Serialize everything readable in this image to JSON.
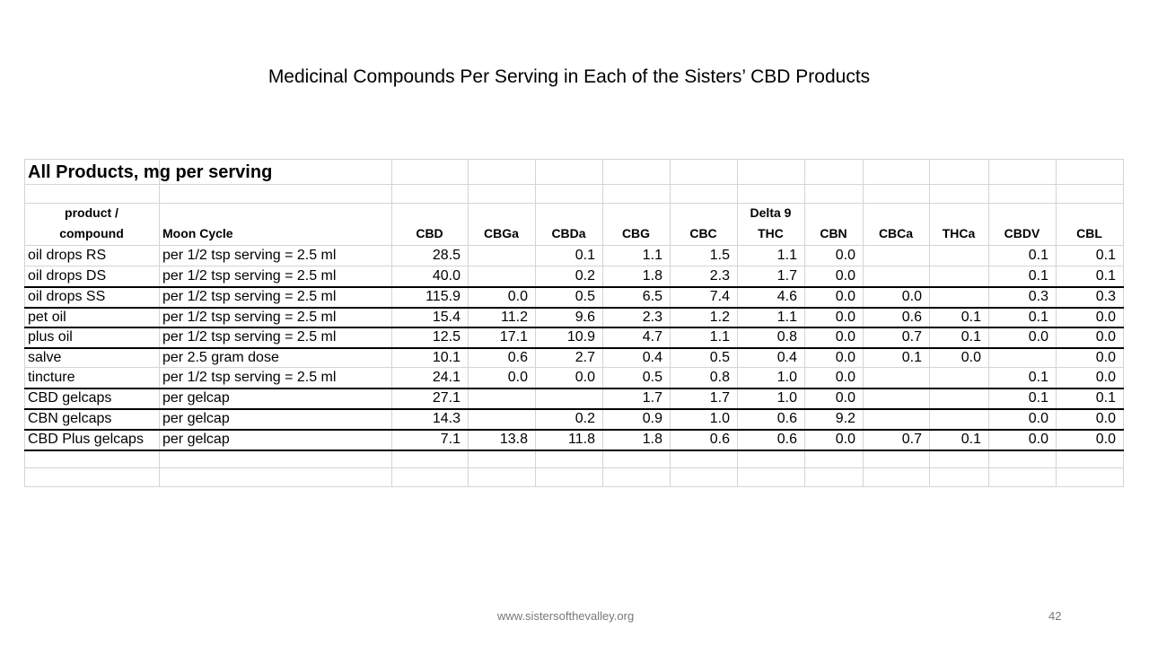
{
  "title": "Medicinal Compounds Per Serving in Each of the Sisters’ CBD Products",
  "table": {
    "caption": "All Products, mg per serving",
    "headers": [
      [
        "product /",
        "compound"
      ],
      [
        "Moon Cycle"
      ],
      [
        "CBD"
      ],
      [
        "CBGa"
      ],
      [
        "CBDa"
      ],
      [
        "CBG"
      ],
      [
        "CBC"
      ],
      [
        "Delta 9",
        "THC"
      ],
      [
        "CBN"
      ],
      [
        "CBCa"
      ],
      [
        "THCa"
      ],
      [
        "CBDV"
      ],
      [
        "CBL"
      ]
    ],
    "rows": [
      [
        "oil drops RS",
        "per 1/2 tsp serving = 2.5 ml",
        "28.5",
        null,
        "0.1",
        "1.1",
        "1.5",
        "1.1",
        "0.0",
        null,
        null,
        "0.1",
        "0.1"
      ],
      [
        "oil drops DS",
        "per 1/2 tsp serving = 2.5 ml",
        "40.0",
        null,
        "0.2",
        "1.8",
        "2.3",
        "1.7",
        "0.0",
        null,
        null,
        "0.1",
        "0.1"
      ],
      [
        "oil drops SS",
        "per 1/2 tsp serving = 2.5 ml",
        "115.9",
        "0.0",
        "0.5",
        "6.5",
        "7.4",
        "4.6",
        "0.0",
        "0.0",
        null,
        "0.3",
        "0.3"
      ],
      [
        "pet oil",
        "per 1/2 tsp serving = 2.5 ml",
        "15.4",
        "11.2",
        "9.6",
        "2.3",
        "1.2",
        "1.1",
        "0.0",
        "0.6",
        "0.1",
        "0.1",
        "0.0"
      ],
      [
        "plus oil",
        "per 1/2 tsp serving = 2.5 ml",
        "12.5",
        "17.1",
        "10.9",
        "4.7",
        "1.1",
        "0.8",
        "0.0",
        "0.7",
        "0.1",
        "0.0",
        "0.0"
      ],
      [
        "salve",
        "per 2.5 gram dose",
        "10.1",
        "0.6",
        "2.7",
        "0.4",
        "0.5",
        "0.4",
        "0.0",
        "0.1",
        "0.0",
        null,
        "0.0"
      ],
      [
        "tincture",
        "per 1/2 tsp serving = 2.5 ml",
        "24.1",
        "0.0",
        "0.0",
        "0.5",
        "0.8",
        "1.0",
        "0.0",
        null,
        null,
        "0.1",
        "0.0"
      ],
      [
        "CBD gelcaps",
        "per gelcap",
        "27.1",
        null,
        null,
        "1.7",
        "1.7",
        "1.0",
        "0.0",
        null,
        null,
        "0.1",
        "0.1"
      ],
      [
        "CBN gelcaps",
        "per gelcap",
        "14.3",
        null,
        "0.2",
        "0.9",
        "1.0",
        "0.6",
        "9.2",
        null,
        null,
        "0.0",
        "0.0"
      ],
      [
        "CBD Plus gelcaps",
        "per gelcap",
        "7.1",
        "13.8",
        "11.8",
        "1.8",
        "0.6",
        "0.6",
        "0.0",
        "0.7",
        "0.1",
        "0.0",
        "0.0"
      ]
    ]
  },
  "footer": {
    "url": "www.sistersofthevalley.org",
    "page": "42"
  }
}
